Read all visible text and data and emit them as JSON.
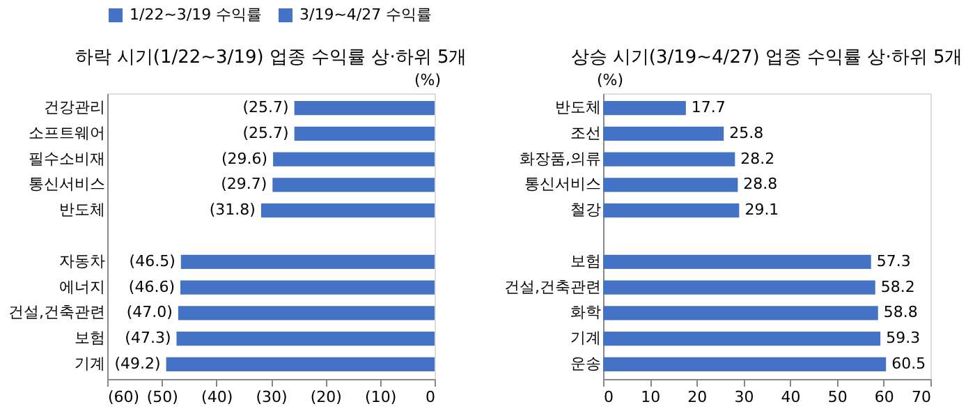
{
  "chart_data": [
    {
      "type": "bar",
      "orientation": "horizontal",
      "title": "하락 시기(1/22~3/19) 업종 수익률 상·하위 5개",
      "categories": [
        "건강관리",
        "소프트웨어",
        "필수소비재",
        "통신서비스",
        "반도체",
        null,
        "자동차",
        "에너지",
        "건설,건축관련",
        "보험",
        "기계"
      ],
      "series": [
        {
          "name": "1/22~3/19 수익률",
          "color": "#4472c4",
          "values": [
            -25.7,
            -25.7,
            -29.6,
            -29.7,
            -31.8,
            null,
            -46.5,
            -46.6,
            -47.0,
            -47.3,
            -49.2
          ],
          "value_labels": [
            "(25.7)",
            "(25.7)",
            "(29.6)",
            "(29.7)",
            "(31.8)",
            null,
            "(46.5)",
            "(46.6)",
            "(47.0)",
            "(47.3)",
            "(49.2)"
          ]
        }
      ],
      "xlim": [
        -60,
        0
      ],
      "xticks": [
        {
          "value": -60,
          "label": "(60)"
        },
        {
          "value": -50,
          "label": "(50)"
        },
        {
          "value": -40,
          "label": "(40)"
        },
        {
          "value": -30,
          "label": "(30)"
        },
        {
          "value": -20,
          "label": "(20)"
        },
        {
          "value": -10,
          "label": "(10)"
        },
        0
      ],
      "legend": "top",
      "grid": false,
      "annotations": [
        "(%)"
      ]
    },
    {
      "type": "bar",
      "orientation": "horizontal",
      "title": "상승 시기(3/19~4/27) 업종 수익률 상·하위 5개",
      "categories": [
        "반도체",
        "조선",
        "화장품,의류",
        "통신서비스",
        "철강",
        null,
        "보험",
        "건설,건축관련",
        "화학",
        "기계",
        "운송"
      ],
      "series": [
        {
          "name": "3/19~4/27 수익률",
          "color": "#4472c4",
          "values": [
            17.7,
            25.8,
            28.2,
            28.8,
            29.1,
            null,
            57.3,
            58.2,
            58.8,
            59.3,
            60.5
          ],
          "value_labels": [
            "17.7",
            "25.8",
            "28.2",
            "28.8",
            "29.1",
            null,
            "57.3",
            "58.2",
            "58.8",
            "59.3",
            "60.5"
          ]
        }
      ],
      "xlim": [
        0,
        70
      ],
      "xticks": [
        0,
        10,
        20,
        30,
        40,
        50,
        60,
        70
      ],
      "legend": "top",
      "grid": false,
      "annotations": [
        "(%)"
      ]
    }
  ]
}
